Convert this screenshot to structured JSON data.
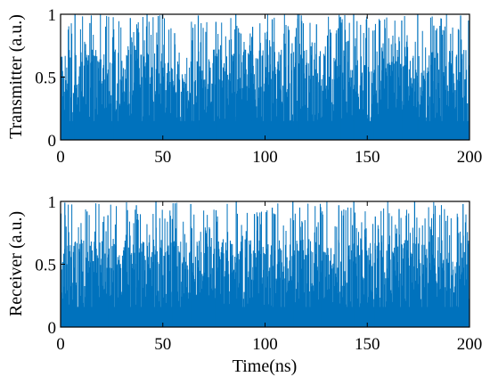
{
  "colors": {
    "series": "#0072BD",
    "axis": "#000000",
    "background": "#ffffff"
  },
  "chart_data": [
    {
      "type": "bar",
      "panel": "top",
      "ylabel": "Transmitter (a.u.)",
      "xlabel": "",
      "xlim": [
        0,
        200
      ],
      "ylim": [
        0,
        1
      ],
      "x_unit": "ns",
      "x_ticks": [
        "0",
        "50",
        "100",
        "150",
        "200"
      ],
      "y_ticks": [
        "0",
        "0.5",
        "1"
      ],
      "grid": false,
      "legend": "none",
      "sampling_interval_ns": 0.25,
      "dense_band": [
        0.03,
        0.72
      ],
      "peak_values": [
        1.0,
        0.93,
        0.88,
        0.97,
        1.0,
        0.85,
        0.99,
        0.94,
        1.0,
        0.9,
        0.96,
        1.0,
        0.92,
        0.98,
        1.0,
        0.87,
        0.95,
        1.0,
        0.91,
        0.99
      ]
    },
    {
      "type": "bar",
      "panel": "bottom",
      "ylabel": "Receiver (a.u.)",
      "xlabel": "Time(ns)",
      "xlim": [
        0,
        200
      ],
      "ylim": [
        0,
        1
      ],
      "x_unit": "ns",
      "x_ticks": [
        "0",
        "50",
        "100",
        "150",
        "200"
      ],
      "y_ticks": [
        "0",
        "0.5",
        "1"
      ],
      "grid": false,
      "legend": "none",
      "sampling_interval_ns": 0.25,
      "dense_band": [
        0.04,
        0.7
      ],
      "peak_values": [
        0.99,
        0.92,
        0.89,
        0.97,
        1.0,
        0.86,
        0.98,
        0.93,
        1.0,
        0.9,
        0.95,
        1.0,
        0.91,
        0.97,
        1.0,
        0.88,
        0.94,
        1.0,
        0.9,
        0.98
      ]
    }
  ]
}
